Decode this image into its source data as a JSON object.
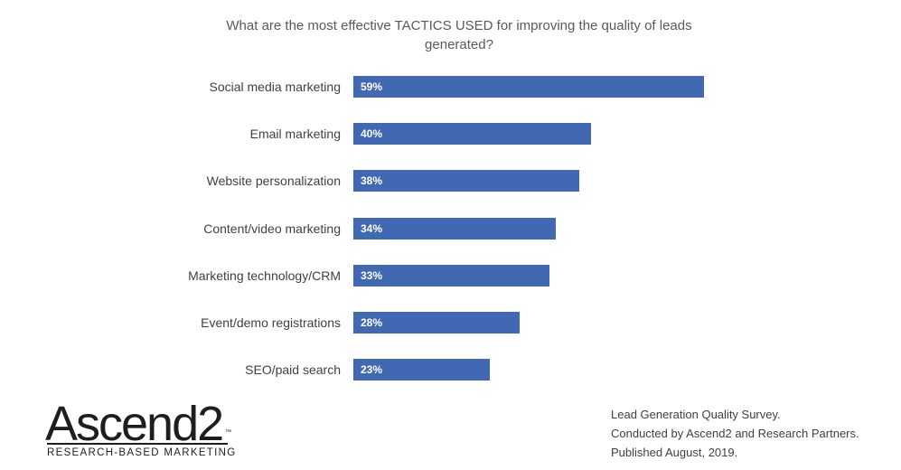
{
  "chart_data": {
    "type": "bar",
    "orientation": "horizontal",
    "title": "What are the most effective TACTICS USED for improving the quality of leads generated?",
    "title_lines": [
      "What are the most effective TACTICS USED for improving the quality of leads",
      "generated?"
    ],
    "categories": [
      "Social media marketing",
      "Email marketing",
      "Website personalization",
      "Content/video marketing",
      "Marketing technology/CRM",
      "Event/demo registrations",
      "SEO/paid search"
    ],
    "values": [
      59,
      40,
      38,
      34,
      33,
      28,
      23
    ],
    "value_labels": [
      "59%",
      "40%",
      "38%",
      "34%",
      "33%",
      "28%",
      "23%"
    ],
    "unit": "%",
    "xlim": [
      0,
      100
    ],
    "grid": false,
    "bar_color": "#4169b3"
  },
  "logo": {
    "name": "Ascend2",
    "trademark": "™",
    "tagline": "RESEARCH-BASED MARKETING"
  },
  "footer": {
    "lines": [
      "Lead Generation Quality Survey.",
      "Conducted  by Ascend2 and Research Partners.",
      "Published August, 2019."
    ]
  }
}
